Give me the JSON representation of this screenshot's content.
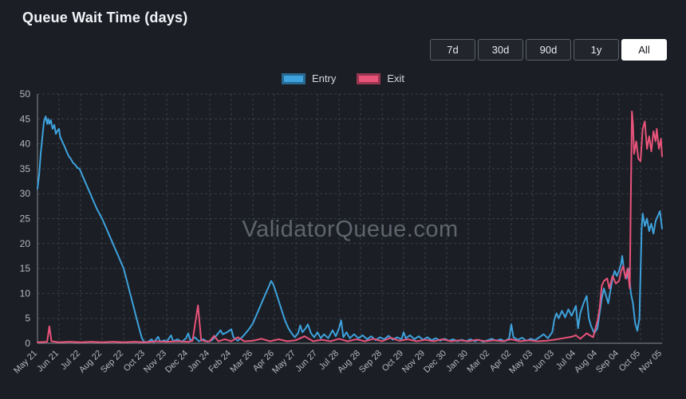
{
  "header": {
    "title": "Queue Wait Time (days)"
  },
  "toolbar": {
    "ranges": [
      "7d",
      "30d",
      "90d",
      "1y",
      "All"
    ],
    "active_range": "All"
  },
  "legend": {
    "entry": "Entry",
    "exit": "Exit"
  },
  "chart_data": {
    "type": "line",
    "title": "Queue Wait Time (days)",
    "watermark": "ValidatorQueue.com",
    "ylabel": "",
    "xlabel": "",
    "ylim": [
      0,
      50
    ],
    "ytick_step": 5,
    "grid": true,
    "grid_style": "dashed",
    "legend_position": "top",
    "categories": [
      "May 21",
      "Jun 21",
      "Jul 22",
      "Aug 22",
      "Sep 22",
      "Oct 23",
      "Nov 23",
      "Dec 24",
      "Jan 24",
      "Feb 24",
      "Mar 26",
      "Apr 26",
      "May 27",
      "Jun 27",
      "Jul 28",
      "Aug 28",
      "Sep 28",
      "Oct 29",
      "Nov 29",
      "Dec 30",
      "Jan 30",
      "Mar 02",
      "Apr 02",
      "May 03",
      "Jun 03",
      "Jul 04",
      "Aug 04",
      "Sep 04",
      "Oct 05",
      "Nov 05"
    ],
    "x_unit": "category_index",
    "series": [
      {
        "name": "Entry",
        "color": "#3da2dd",
        "points": [
          [
            0,
            31
          ],
          [
            0.08,
            34
          ],
          [
            0.15,
            38
          ],
          [
            0.22,
            41
          ],
          [
            0.3,
            44.5
          ],
          [
            0.38,
            45.5
          ],
          [
            0.45,
            44
          ],
          [
            0.5,
            45
          ],
          [
            0.55,
            44
          ],
          [
            0.62,
            44.8
          ],
          [
            0.7,
            43
          ],
          [
            0.78,
            43.8
          ],
          [
            0.85,
            42
          ],
          [
            0.95,
            42.8
          ],
          [
            1.0,
            43
          ],
          [
            1.05,
            41.5
          ],
          [
            1.15,
            40.5
          ],
          [
            1.25,
            39.5
          ],
          [
            1.35,
            38.5
          ],
          [
            1.45,
            37.5
          ],
          [
            1.55,
            37
          ],
          [
            1.65,
            36.2
          ],
          [
            1.75,
            35.8
          ],
          [
            1.85,
            35.2
          ],
          [
            1.95,
            35
          ],
          [
            2.0,
            34.5
          ],
          [
            2.1,
            33.5
          ],
          [
            2.2,
            32.5
          ],
          [
            2.3,
            31.5
          ],
          [
            2.45,
            30
          ],
          [
            2.6,
            28.5
          ],
          [
            2.75,
            27
          ],
          [
            2.9,
            25.8
          ],
          [
            3.0,
            25
          ],
          [
            3.15,
            23.5
          ],
          [
            3.3,
            22
          ],
          [
            3.45,
            20.5
          ],
          [
            3.6,
            19
          ],
          [
            3.75,
            17.5
          ],
          [
            3.9,
            16
          ],
          [
            4.0,
            15
          ],
          [
            4.15,
            12.5
          ],
          [
            4.3,
            10
          ],
          [
            4.45,
            7.5
          ],
          [
            4.6,
            5
          ],
          [
            4.75,
            2.5
          ],
          [
            4.85,
            1
          ],
          [
            4.95,
            0.3
          ],
          [
            5.1,
            0.2
          ],
          [
            5.3,
            0.8
          ],
          [
            5.4,
            0.2
          ],
          [
            5.6,
            1.3
          ],
          [
            5.7,
            0.3
          ],
          [
            5.9,
            0.6
          ],
          [
            6.0,
            0.3
          ],
          [
            6.2,
            1.6
          ],
          [
            6.3,
            0.4
          ],
          [
            6.5,
            0.8
          ],
          [
            6.7,
            0.3
          ],
          [
            6.9,
            1
          ],
          [
            7.0,
            2
          ],
          [
            7.1,
            0.5
          ],
          [
            7.3,
            1.2
          ],
          [
            7.5,
            0.4
          ],
          [
            7.7,
            0.8
          ],
          [
            7.9,
            0.3
          ],
          [
            8.1,
            0.6
          ],
          [
            8.3,
            1.5
          ],
          [
            8.5,
            2.6
          ],
          [
            8.6,
            1.8
          ],
          [
            8.8,
            2.2
          ],
          [
            9.0,
            2.8
          ],
          [
            9.1,
            1.2
          ],
          [
            9.3,
            0.5
          ],
          [
            9.5,
            1.2
          ],
          [
            9.7,
            2.2
          ],
          [
            9.85,
            3
          ],
          [
            10.0,
            4
          ],
          [
            10.15,
            5.5
          ],
          [
            10.3,
            7
          ],
          [
            10.45,
            8.5
          ],
          [
            10.6,
            10
          ],
          [
            10.75,
            11.5
          ],
          [
            10.85,
            12.5
          ],
          [
            10.95,
            11.8
          ],
          [
            11.05,
            10.5
          ],
          [
            11.2,
            8.5
          ],
          [
            11.35,
            6.5
          ],
          [
            11.5,
            4.5
          ],
          [
            11.65,
            3
          ],
          [
            11.8,
            2
          ],
          [
            11.95,
            1.2
          ],
          [
            12.1,
            2
          ],
          [
            12.2,
            3.6
          ],
          [
            12.3,
            2.2
          ],
          [
            12.45,
            3
          ],
          [
            12.55,
            3.8
          ],
          [
            12.7,
            2
          ],
          [
            12.85,
            1.2
          ],
          [
            13.0,
            2.2
          ],
          [
            13.15,
            1
          ],
          [
            13.3,
            1.8
          ],
          [
            13.5,
            1
          ],
          [
            13.7,
            2.6
          ],
          [
            13.85,
            1.4
          ],
          [
            14.0,
            3
          ],
          [
            14.1,
            4.6
          ],
          [
            14.2,
            1.2
          ],
          [
            14.35,
            2.2
          ],
          [
            14.5,
            1
          ],
          [
            14.7,
            1.8
          ],
          [
            14.9,
            1
          ],
          [
            15.1,
            1.6
          ],
          [
            15.3,
            0.8
          ],
          [
            15.5,
            1.4
          ],
          [
            15.7,
            0.6
          ],
          [
            15.9,
            1.2
          ],
          [
            16.1,
            0.8
          ],
          [
            16.3,
            1.5
          ],
          [
            16.5,
            0.7
          ],
          [
            16.7,
            1.2
          ],
          [
            16.9,
            0.8
          ],
          [
            17.0,
            2.2
          ],
          [
            17.1,
            1
          ],
          [
            17.3,
            1.6
          ],
          [
            17.5,
            0.8
          ],
          [
            17.7,
            1.4
          ],
          [
            17.9,
            0.7
          ],
          [
            18.1,
            1.2
          ],
          [
            18.3,
            0.6
          ],
          [
            18.5,
            1
          ],
          [
            18.7,
            0.5
          ],
          [
            18.9,
            0.9
          ],
          [
            19.1,
            0.5
          ],
          [
            19.3,
            0.8
          ],
          [
            19.5,
            0.4
          ],
          [
            19.7,
            0.7
          ],
          [
            19.9,
            0.4
          ],
          [
            20.1,
            0.8
          ],
          [
            20.3,
            0.4
          ],
          [
            20.5,
            0.7
          ],
          [
            20.7,
            0.3
          ],
          [
            20.9,
            0.6
          ],
          [
            21.1,
            0.9
          ],
          [
            21.3,
            0.5
          ],
          [
            21.5,
            0.8
          ],
          [
            21.7,
            0.4
          ],
          [
            21.9,
            1
          ],
          [
            22.0,
            3.8
          ],
          [
            22.1,
            1.2
          ],
          [
            22.3,
            0.7
          ],
          [
            22.5,
            1.1
          ],
          [
            22.7,
            0.5
          ],
          [
            22.9,
            0.9
          ],
          [
            23.1,
            0.6
          ],
          [
            23.3,
            1.2
          ],
          [
            23.5,
            1.8
          ],
          [
            23.7,
            1
          ],
          [
            23.9,
            2.2
          ],
          [
            24.0,
            4.8
          ],
          [
            24.1,
            6
          ],
          [
            24.2,
            5
          ],
          [
            24.35,
            6.5
          ],
          [
            24.5,
            5.2
          ],
          [
            24.65,
            6.8
          ],
          [
            24.8,
            5.5
          ],
          [
            24.95,
            7
          ],
          [
            25.0,
            7.5
          ],
          [
            25.1,
            3
          ],
          [
            25.2,
            6
          ],
          [
            25.35,
            8
          ],
          [
            25.5,
            9.5
          ],
          [
            25.6,
            5
          ],
          [
            25.7,
            3.5
          ],
          [
            25.85,
            2
          ],
          [
            26.0,
            3
          ],
          [
            26.1,
            6
          ],
          [
            26.2,
            9
          ],
          [
            26.3,
            11
          ],
          [
            26.4,
            9.5
          ],
          [
            26.5,
            8
          ],
          [
            26.6,
            10.5
          ],
          [
            26.7,
            13
          ],
          [
            26.8,
            14.5
          ],
          [
            26.9,
            13.5
          ],
          [
            27.0,
            14.5
          ],
          [
            27.1,
            16
          ],
          [
            27.15,
            17.5
          ],
          [
            27.25,
            14
          ],
          [
            27.35,
            13
          ],
          [
            27.45,
            15
          ],
          [
            27.55,
            10
          ],
          [
            27.65,
            8
          ],
          [
            27.75,
            4
          ],
          [
            27.85,
            2.5
          ],
          [
            27.95,
            5
          ],
          [
            28.0,
            14
          ],
          [
            28.05,
            23
          ],
          [
            28.1,
            26
          ],
          [
            28.2,
            23.5
          ],
          [
            28.3,
            25
          ],
          [
            28.4,
            22.5
          ],
          [
            28.5,
            24
          ],
          [
            28.6,
            22
          ],
          [
            28.7,
            24.5
          ],
          [
            28.8,
            25.5
          ],
          [
            28.9,
            26.5
          ],
          [
            29.0,
            23
          ]
        ]
      },
      {
        "name": "Exit",
        "color": "#e8537a",
        "points": [
          [
            0,
            0.2
          ],
          [
            0.45,
            0.3
          ],
          [
            0.55,
            3.4
          ],
          [
            0.65,
            0.4
          ],
          [
            1.0,
            0.2
          ],
          [
            1.5,
            0.3
          ],
          [
            2.0,
            0.2
          ],
          [
            2.5,
            0.3
          ],
          [
            3.0,
            0.2
          ],
          [
            3.5,
            0.3
          ],
          [
            4.0,
            0.2
          ],
          [
            4.5,
            0.3
          ],
          [
            5.0,
            0.2
          ],
          [
            5.5,
            0.4
          ],
          [
            6.0,
            0.3
          ],
          [
            6.5,
            0.4
          ],
          [
            7.0,
            0.3
          ],
          [
            7.2,
            0.5
          ],
          [
            7.45,
            7.6
          ],
          [
            7.6,
            0.6
          ],
          [
            7.8,
            0.4
          ],
          [
            8.0,
            0.4
          ],
          [
            8.2,
            1.5
          ],
          [
            8.4,
            0.4
          ],
          [
            8.7,
            0.8
          ],
          [
            9.0,
            0.4
          ],
          [
            9.3,
            1.2
          ],
          [
            9.6,
            0.4
          ],
          [
            10.0,
            0.5
          ],
          [
            10.4,
            0.9
          ],
          [
            10.8,
            0.4
          ],
          [
            11.2,
            0.8
          ],
          [
            11.6,
            0.4
          ],
          [
            12.0,
            0.6
          ],
          [
            12.4,
            1.4
          ],
          [
            12.8,
            0.4
          ],
          [
            13.2,
            0.7
          ],
          [
            13.6,
            0.4
          ],
          [
            14.0,
            0.9
          ],
          [
            14.4,
            0.4
          ],
          [
            14.8,
            0.8
          ],
          [
            15.2,
            0.4
          ],
          [
            15.6,
            0.9
          ],
          [
            16.0,
            0.4
          ],
          [
            16.4,
            1.1
          ],
          [
            16.8,
            0.5
          ],
          [
            17.2,
            0.8
          ],
          [
            17.6,
            0.4
          ],
          [
            18.0,
            0.7
          ],
          [
            18.4,
            0.4
          ],
          [
            18.8,
            0.8
          ],
          [
            19.2,
            0.4
          ],
          [
            19.6,
            0.6
          ],
          [
            20.0,
            0.4
          ],
          [
            20.4,
            0.7
          ],
          [
            20.8,
            0.4
          ],
          [
            21.2,
            0.6
          ],
          [
            21.6,
            0.4
          ],
          [
            22.0,
            0.8
          ],
          [
            22.4,
            0.4
          ],
          [
            22.8,
            0.6
          ],
          [
            23.2,
            0.4
          ],
          [
            23.6,
            0.5
          ],
          [
            24.0,
            0.7
          ],
          [
            24.4,
            1
          ],
          [
            24.8,
            1.3
          ],
          [
            25.0,
            1.6
          ],
          [
            25.2,
            0.9
          ],
          [
            25.5,
            2
          ],
          [
            25.8,
            1.2
          ],
          [
            26.0,
            4.5
          ],
          [
            26.1,
            7
          ],
          [
            26.2,
            11.5
          ],
          [
            26.3,
            12.5
          ],
          [
            26.45,
            13
          ],
          [
            26.55,
            11
          ],
          [
            26.7,
            13.5
          ],
          [
            26.85,
            12
          ],
          [
            27.0,
            12.5
          ],
          [
            27.1,
            14.5
          ],
          [
            27.2,
            15.5
          ],
          [
            27.3,
            13
          ],
          [
            27.4,
            15
          ],
          [
            27.5,
            11
          ],
          [
            27.55,
            30
          ],
          [
            27.6,
            46.5
          ],
          [
            27.65,
            44
          ],
          [
            27.7,
            38
          ],
          [
            27.8,
            40.5
          ],
          [
            27.9,
            37
          ],
          [
            28.0,
            36.5
          ],
          [
            28.1,
            43
          ],
          [
            28.2,
            44.5
          ],
          [
            28.3,
            39
          ],
          [
            28.4,
            41.5
          ],
          [
            28.5,
            38.5
          ],
          [
            28.6,
            42.5
          ],
          [
            28.7,
            40.5
          ],
          [
            28.75,
            43
          ],
          [
            28.85,
            39
          ],
          [
            28.95,
            41
          ],
          [
            29.0,
            37.5
          ]
        ]
      }
    ]
  }
}
